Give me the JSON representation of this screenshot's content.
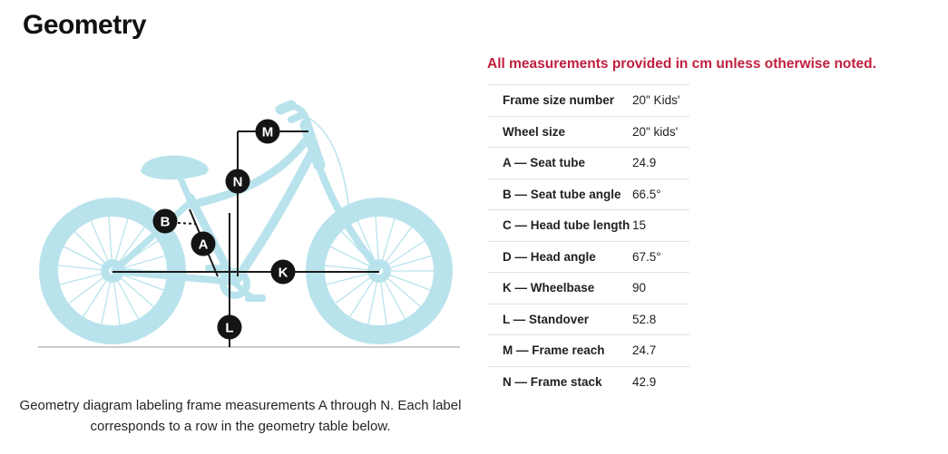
{
  "page": {
    "title": "Geometry"
  },
  "diagram": {
    "caption_line1": "Geometry diagram labeling frame measurements A through N. Each label",
    "caption_line2": "corresponds to a row in the geometry table below.",
    "labels": {
      "M": "M",
      "N": "N",
      "B": "B",
      "A": "A",
      "K": "K",
      "L": "L"
    },
    "colors": {
      "bike_silhouette": "#b9e3ec",
      "measurement_line": "#1a1a1a",
      "label_circle": "#141414",
      "ground_line": "#cbcbcb"
    }
  },
  "table": {
    "note": "All measurements provided in cm unless otherwise noted.",
    "note_color": "#c11f3e",
    "rows": [
      {
        "label": "Frame size number",
        "value": "20\" Kids'"
      },
      {
        "label": "Wheel size",
        "value": "20\" kids'"
      },
      {
        "label": "A — Seat tube",
        "value": "24.9"
      },
      {
        "label": "B — Seat tube angle",
        "value": "66.5°"
      },
      {
        "label": "C — Head tube length",
        "value": "15"
      },
      {
        "label": "D — Head angle",
        "value": "67.5°"
      },
      {
        "label": "K — Wheelbase",
        "value": "90"
      },
      {
        "label": "L — Standover",
        "value": "52.8"
      },
      {
        "label": "M — Frame reach",
        "value": "24.7"
      },
      {
        "label": "N — Frame stack",
        "value": "42.9"
      }
    ]
  }
}
